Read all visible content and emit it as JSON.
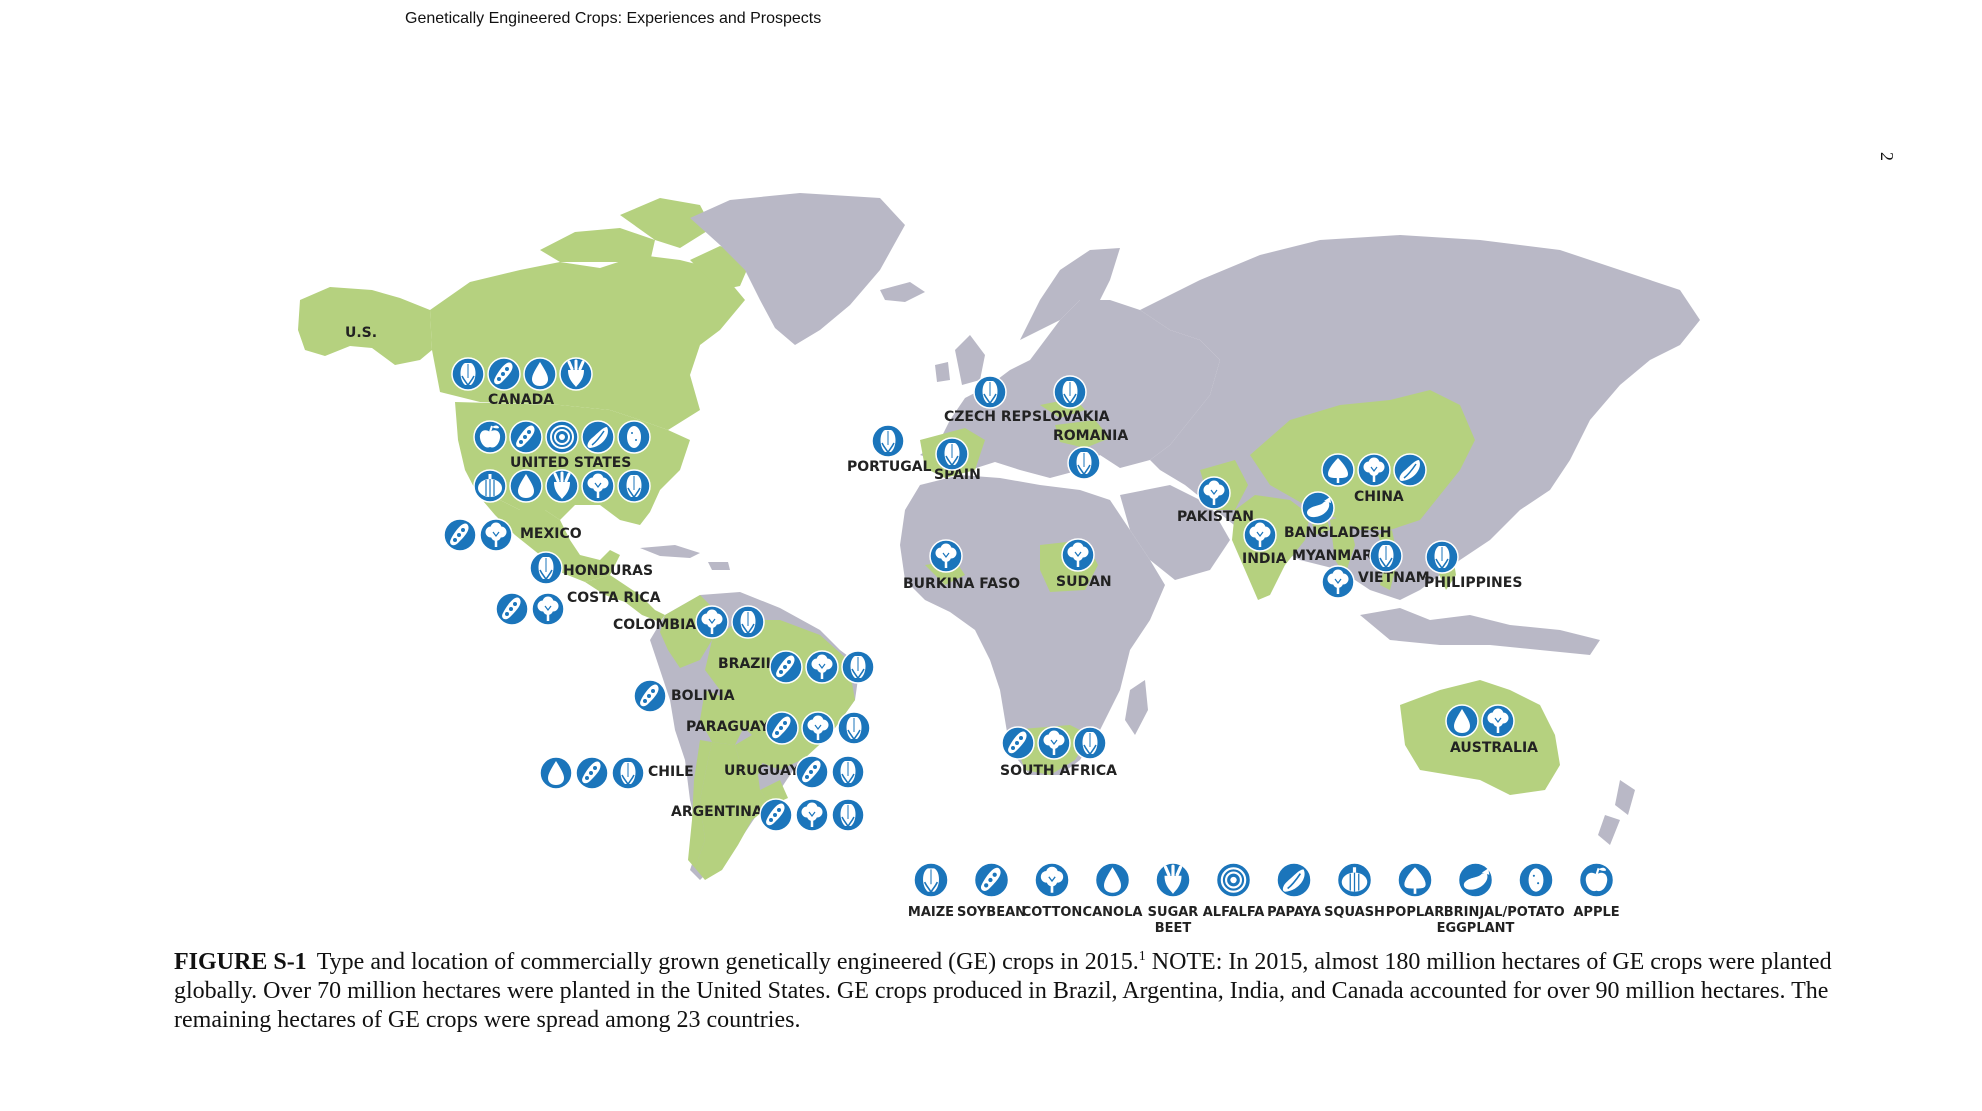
{
  "header": {
    "running_title": "Genetically Engineered Crops:  Experiences and Prospects",
    "page_number": "2"
  },
  "colors": {
    "ge_country": "#b5d17f",
    "other_land": "#b9b8c6",
    "icon_fill": "#1b75bb",
    "icon_glyph": "#ffffff",
    "label_text": "#222222"
  },
  "crop_legend": [
    {
      "id": "maize",
      "label": "MAIZE"
    },
    {
      "id": "soybean",
      "label": "SOYBEAN"
    },
    {
      "id": "cotton",
      "label": "COTTON"
    },
    {
      "id": "canola",
      "label": "CANOLA"
    },
    {
      "id": "sugar-beet",
      "label": "SUGAR BEET"
    },
    {
      "id": "alfalfa",
      "label": "ALFALFA"
    },
    {
      "id": "papaya",
      "label": "PAPAYA"
    },
    {
      "id": "squash",
      "label": "SQUASH"
    },
    {
      "id": "poplar",
      "label": "POPLAR"
    },
    {
      "id": "brinjal",
      "label": "BRINJAL/ EGGPLANT"
    },
    {
      "id": "potato",
      "label": "POTATO"
    },
    {
      "id": "apple",
      "label": "APPLE"
    }
  ],
  "countries": [
    {
      "name": "U.S.",
      "crops": []
    },
    {
      "name": "CANADA",
      "crops": [
        "maize",
        "soybean",
        "canola",
        "sugar-beet"
      ]
    },
    {
      "name": "UNITED STATES",
      "crops": [
        "apple",
        "soybean",
        "alfalfa",
        "papaya",
        "potato",
        "squash",
        "canola",
        "sugar-beet",
        "cotton",
        "maize"
      ]
    },
    {
      "name": "MEXICO",
      "crops": [
        "soybean",
        "cotton"
      ]
    },
    {
      "name": "HONDURAS",
      "crops": [
        "maize"
      ]
    },
    {
      "name": "COSTA RICA",
      "crops": [
        "soybean",
        "cotton"
      ]
    },
    {
      "name": "COLOMBIA",
      "crops": [
        "cotton",
        "maize"
      ]
    },
    {
      "name": "BRAZIL",
      "crops": [
        "soybean",
        "cotton",
        "maize"
      ]
    },
    {
      "name": "BOLIVIA",
      "crops": [
        "soybean"
      ]
    },
    {
      "name": "PARAGUAY",
      "crops": [
        "soybean",
        "cotton",
        "maize"
      ]
    },
    {
      "name": "CHILE",
      "crops": [
        "canola",
        "soybean",
        "maize"
      ]
    },
    {
      "name": "URUGUAY",
      "crops": [
        "soybean",
        "maize"
      ]
    },
    {
      "name": "ARGENTINA",
      "crops": [
        "soybean",
        "cotton",
        "maize"
      ]
    },
    {
      "name": "PORTUGAL",
      "crops": [
        "maize"
      ]
    },
    {
      "name": "SPAIN",
      "crops": [
        "maize"
      ]
    },
    {
      "name": "CZECH REP",
      "crops": [
        "maize"
      ]
    },
    {
      "name": "SLOVAKIA",
      "crops": [
        "maize"
      ]
    },
    {
      "name": "ROMANIA",
      "crops": [
        "maize"
      ]
    },
    {
      "name": "BURKINA FASO",
      "crops": [
        "cotton"
      ]
    },
    {
      "name": "SUDAN",
      "crops": [
        "cotton"
      ]
    },
    {
      "name": "SOUTH AFRICA",
      "crops": [
        "soybean",
        "cotton",
        "maize"
      ]
    },
    {
      "name": "PAKISTAN",
      "crops": [
        "cotton"
      ]
    },
    {
      "name": "INDIA",
      "crops": [
        "cotton"
      ]
    },
    {
      "name": "BANGLADESH",
      "crops": [
        "brinjal"
      ]
    },
    {
      "name": "MYANMAR",
      "crops": [
        "cotton"
      ]
    },
    {
      "name": "CHINA",
      "crops": [
        "poplar",
        "cotton",
        "papaya"
      ]
    },
    {
      "name": "VIETNAM",
      "crops": [
        "maize"
      ]
    },
    {
      "name": "PHILIPPINES",
      "crops": [
        "maize"
      ]
    },
    {
      "name": "AUSTRALIA",
      "crops": [
        "canola",
        "cotton"
      ]
    }
  ],
  "caption": {
    "label": "FIGURE S-1",
    "text_before_ref": "Type and location of commercially grown genetically engineered (GE) crops in 2015.",
    "ref": "1",
    "text_after_ref": " NOTE: In 2015, almost 180 million hectares of GE crops were planted globally. Over 70 million hectares were planted in the United States. GE crops produced in Brazil, Argentina, India, and Canada accounted for over 90 million hectares. The remaining hectares of GE crops were spread among 23 countries."
  }
}
